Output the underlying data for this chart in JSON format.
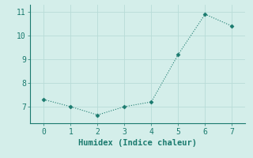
{
  "x": [
    0,
    1,
    2,
    3,
    4,
    5,
    6,
    7
  ],
  "y": [
    7.3,
    7.0,
    6.65,
    7.0,
    7.2,
    9.2,
    10.9,
    10.4
  ],
  "line_color": "#1a7a6e",
  "marker": "D",
  "marker_size": 2.5,
  "xlabel": "Humidex (Indice chaleur)",
  "xlim": [
    -0.5,
    7.5
  ],
  "ylim": [
    6.3,
    11.3
  ],
  "yticks": [
    7,
    8,
    9,
    10,
    11
  ],
  "xticks": [
    0,
    1,
    2,
    3,
    4,
    5,
    6,
    7
  ],
  "bg_color": "#d4eeea",
  "grid_color": "#b8dcd7",
  "xlabel_fontsize": 7.5,
  "tick_fontsize": 7
}
